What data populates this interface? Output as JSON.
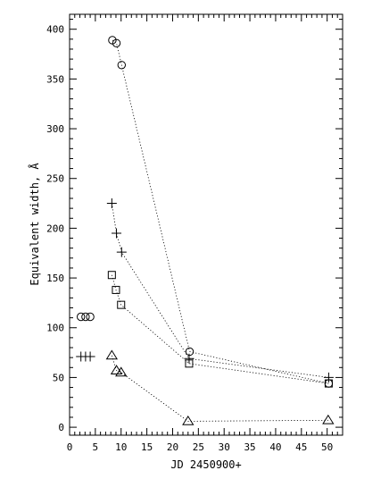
{
  "chart_data": {
    "type": "scatter",
    "title": "",
    "xlabel": "JD 2450900+",
    "ylabel": "Equivalent width, Å",
    "xlim": [
      0,
      53
    ],
    "ylim": [
      -8,
      415
    ],
    "xticks": [
      0,
      5,
      10,
      15,
      20,
      25,
      30,
      35,
      40,
      45,
      50
    ],
    "yticks": [
      0,
      50,
      100,
      150,
      200,
      250,
      300,
      350,
      400
    ],
    "grid": false,
    "legend": "none",
    "series": [
      {
        "marker": "circle",
        "connected": [
          [
            8.3,
            389
          ],
          [
            9.1,
            386
          ],
          [
            10.1,
            364
          ],
          [
            23.3,
            76
          ],
          [
            50.3,
            44
          ]
        ],
        "legend_markers": [
          [
            2.2,
            111
          ],
          [
            3.1,
            111
          ],
          [
            4.0,
            111
          ]
        ]
      },
      {
        "marker": "plus",
        "connected": [
          [
            8.2,
            225
          ],
          [
            9.1,
            195
          ],
          [
            10.1,
            176
          ],
          [
            23.2,
            69
          ],
          [
            50.3,
            50
          ]
        ],
        "legend_markers": [
          [
            2.2,
            71
          ],
          [
            3.1,
            71
          ],
          [
            4.0,
            71
          ]
        ]
      },
      {
        "marker": "square",
        "connected": [
          [
            8.2,
            153
          ],
          [
            9.0,
            138
          ],
          [
            10.0,
            123
          ],
          [
            23.2,
            64
          ],
          [
            50.3,
            44
          ]
        ],
        "legend_markers": []
      },
      {
        "marker": "triangle",
        "connected": [
          [
            8.2,
            72
          ],
          [
            9.1,
            57
          ],
          [
            10.0,
            55
          ],
          [
            23.0,
            6
          ],
          [
            50.2,
            7
          ]
        ],
        "legend_markers": []
      }
    ]
  }
}
